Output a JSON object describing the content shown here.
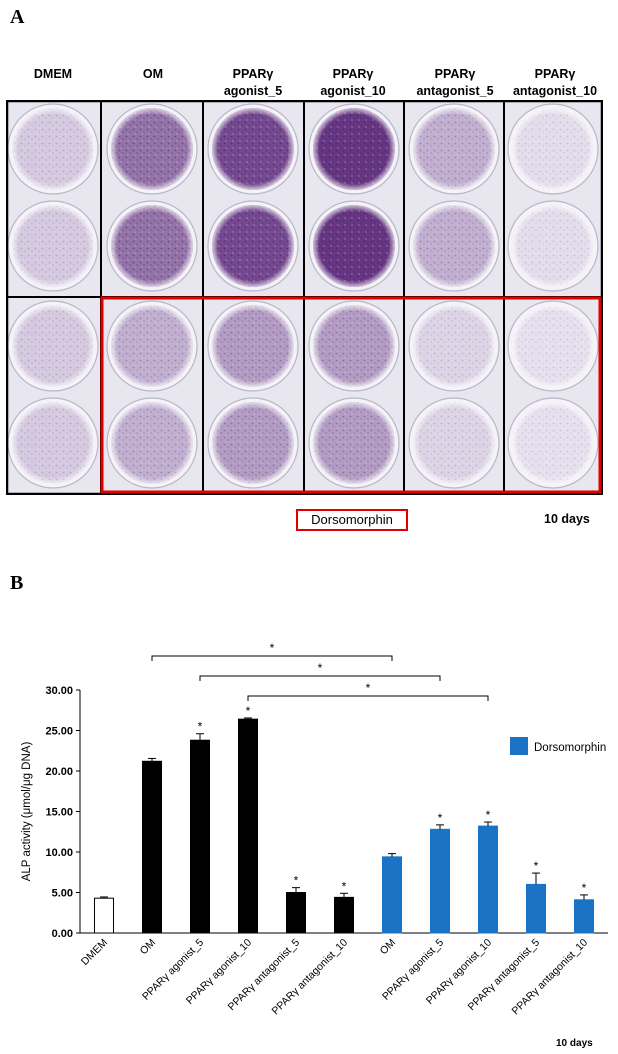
{
  "panel_a": {
    "label": "A",
    "columns": [
      {
        "line1": "DMEM",
        "line2": ""
      },
      {
        "line1": "OM",
        "line2": ""
      },
      {
        "line1": "PPARγ",
        "line2": "agonist_5"
      },
      {
        "line1": "PPARγ",
        "line2": "agonist_10"
      },
      {
        "line1": "PPARγ",
        "line2": "antagonist_5"
      },
      {
        "line1": "PPARγ",
        "line2": "antagonist_10"
      }
    ],
    "well_intensity_top": [
      0.15,
      0.62,
      0.85,
      0.95,
      0.3,
      0.05
    ],
    "well_intensity_bottom": [
      0.15,
      0.3,
      0.4,
      0.4,
      0.1,
      0.03
    ],
    "dorsomorphin_label": "Dorsomorphin",
    "days_label": "10 days",
    "colors": {
      "stain": "#6a3a8c",
      "highlight": "#e00000"
    }
  },
  "panel_b": {
    "label": "B",
    "days_label": "10 days"
  },
  "chart_data": {
    "type": "bar",
    "title": "",
    "xlabel": "",
    "ylabel": "ALP activity (μmol/μg DNA)",
    "ylim": [
      0,
      30
    ],
    "yticks": [
      "0.00",
      "5.00",
      "10.00",
      "15.00",
      "20.00",
      "25.00",
      "30.00"
    ],
    "grid": false,
    "legend_placement": "right",
    "legend": [
      {
        "name": "Dorsomorphin",
        "color": "#1a73c4"
      }
    ],
    "categories": [
      "DMEM",
      "OM",
      "PPARγ agonist_5",
      "PPARγ agonist_10",
      "PPARγ antagonist_5",
      "PPARγ antagonist_10",
      "OM",
      "PPARγ agonist_5",
      "PPARγ agonist_10",
      "PPARγ antagonist_5",
      "PPARγ antagonist_10"
    ],
    "values": [
      4.3,
      21.2,
      23.8,
      26.4,
      5.0,
      4.4,
      9.4,
      12.8,
      13.2,
      6.0,
      4.1
    ],
    "errors": [
      0.15,
      0.35,
      0.8,
      0.15,
      0.6,
      0.5,
      0.4,
      0.55,
      0.5,
      1.4,
      0.6
    ],
    "colors": [
      "#ffffff",
      "#000000",
      "#000000",
      "#000000",
      "#000000",
      "#000000",
      "#1a73c4",
      "#1a73c4",
      "#1a73c4",
      "#1a73c4",
      "#1a73c4"
    ],
    "significance": [
      "",
      "",
      "*",
      "*",
      "*",
      "*",
      "",
      "*",
      "*",
      "*",
      "*"
    ],
    "brackets": [
      {
        "from": 1,
        "to": 6,
        "label": "*"
      },
      {
        "from": 2,
        "to": 7,
        "label": "*"
      },
      {
        "from": 3,
        "to": 8,
        "label": "*"
      }
    ]
  }
}
